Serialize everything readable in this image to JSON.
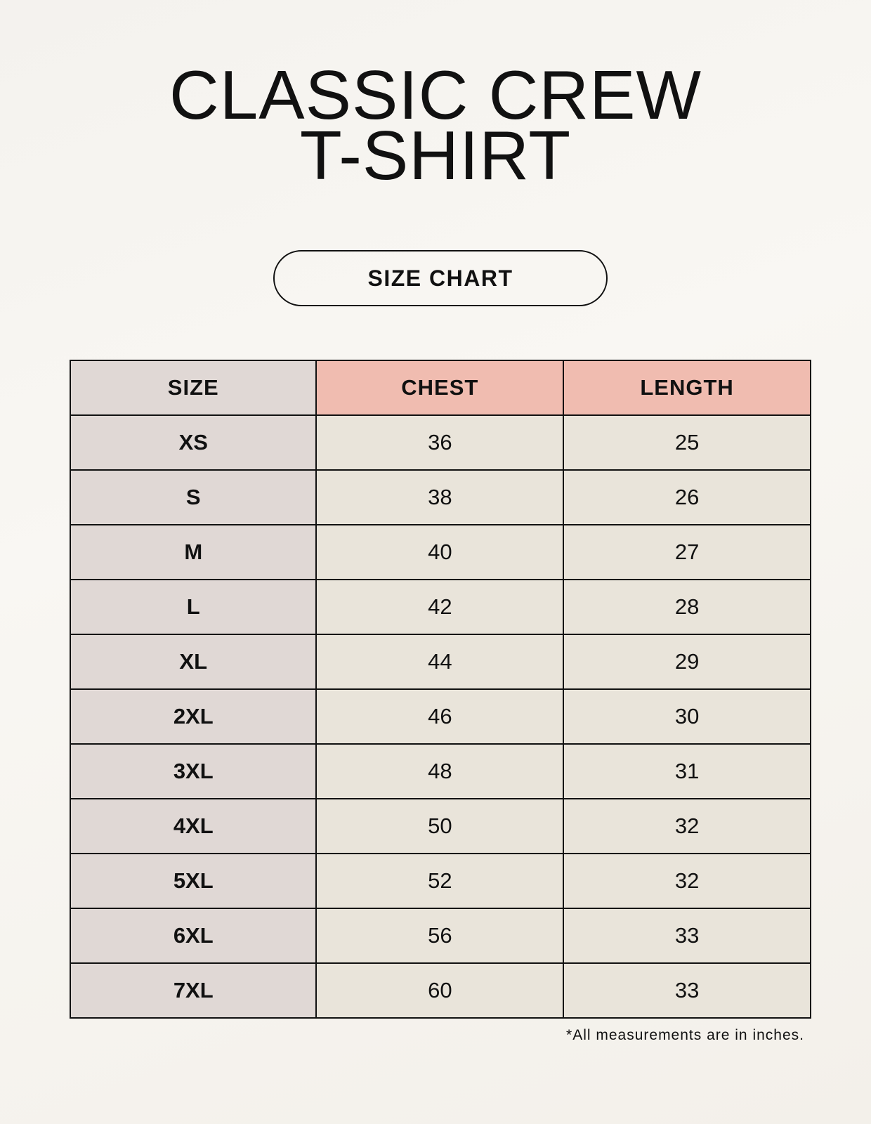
{
  "title": {
    "line1": "CLASSIC CREW",
    "line2": "T-SHIRT"
  },
  "badge": "SIZE CHART",
  "table": {
    "headers": [
      "SIZE",
      "CHEST",
      "LENGTH"
    ],
    "rows": [
      [
        "XS",
        "36",
        "25"
      ],
      [
        "S",
        "38",
        "26"
      ],
      [
        "M",
        "40",
        "27"
      ],
      [
        "L",
        "42",
        "28"
      ],
      [
        "XL",
        "44",
        "29"
      ],
      [
        "2XL",
        "46",
        "30"
      ],
      [
        "3XL",
        "48",
        "31"
      ],
      [
        "4XL",
        "50",
        "32"
      ],
      [
        "5XL",
        "52",
        "32"
      ],
      [
        "6XL",
        "56",
        "33"
      ],
      [
        "7XL",
        "60",
        "33"
      ]
    ]
  },
  "footnote": "*All measurements are in inches.",
  "colors": {
    "size_column": "#e0d8d5",
    "header_accent": "#f0bcb0",
    "value_cells": "#e9e4da"
  }
}
